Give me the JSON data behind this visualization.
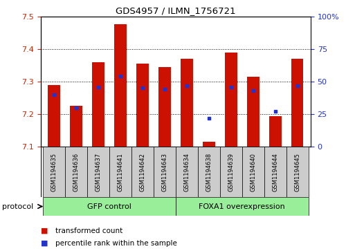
{
  "title": "GDS4957 / ILMN_1756721",
  "samples": [
    "GSM1194635",
    "GSM1194636",
    "GSM1194637",
    "GSM1194641",
    "GSM1194642",
    "GSM1194643",
    "GSM1194634",
    "GSM1194638",
    "GSM1194639",
    "GSM1194640",
    "GSM1194644",
    "GSM1194645"
  ],
  "transformed_count": [
    7.29,
    7.225,
    7.36,
    7.475,
    7.355,
    7.345,
    7.37,
    7.115,
    7.39,
    7.315,
    7.195,
    7.37
  ],
  "percentile_rank": [
    40,
    30,
    46,
    54,
    45,
    44,
    47,
    22,
    46,
    43,
    27,
    47
  ],
  "ymin": 7.1,
  "ymax": 7.5,
  "yticks": [
    7.1,
    7.2,
    7.3,
    7.4,
    7.5
  ],
  "right_yticks": [
    0,
    25,
    50,
    75,
    100
  ],
  "right_ylabels": [
    "0",
    "25",
    "50",
    "75",
    "100%"
  ],
  "bar_color": "#cc1100",
  "dot_color": "#2233cc",
  "bar_width": 0.55,
  "group1_label": "GFP control",
  "group2_label": "FOXA1 overexpression",
  "group1_indices": [
    0,
    1,
    2,
    3,
    4,
    5
  ],
  "group2_indices": [
    6,
    7,
    8,
    9,
    10,
    11
  ],
  "group_bg_color": "#99ee99",
  "sample_bg_color": "#cccccc",
  "protocol_label": "protocol",
  "legend_bar_label": "transformed count",
  "legend_dot_label": "percentile rank within the sample",
  "axis_color_left": "#cc2200",
  "axis_color_right": "#2233cc",
  "fig_width": 5.13,
  "fig_height": 3.63,
  "dpi": 100
}
